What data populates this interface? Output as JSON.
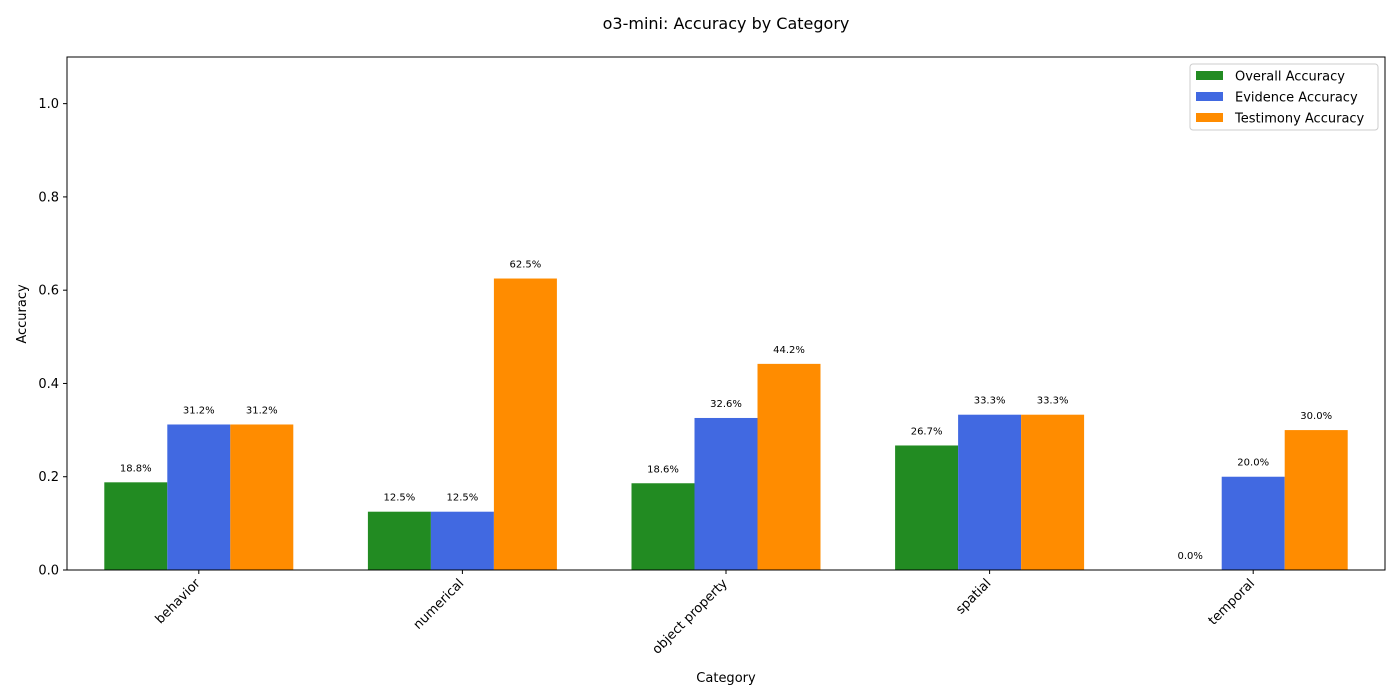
{
  "chart_data": {
    "type": "bar",
    "title": "o3-mini: Accuracy by Category",
    "xlabel": "Category",
    "ylabel": "Accuracy",
    "ylim": [
      0,
      1.1
    ],
    "yticks": [
      "0.0",
      "0.2",
      "0.4",
      "0.6",
      "0.8",
      "1.0"
    ],
    "categories": [
      "behavior",
      "numerical",
      "object property",
      "spatial",
      "temporal"
    ],
    "series": [
      {
        "name": "Overall Accuracy",
        "color": "#228b22",
        "values": [
          0.188,
          0.125,
          0.186,
          0.267,
          0.0
        ],
        "labels": [
          "18.8%",
          "12.5%",
          "18.6%",
          "26.7%",
          "0.0%"
        ]
      },
      {
        "name": "Evidence Accuracy",
        "color": "#4169e1",
        "values": [
          0.312,
          0.125,
          0.326,
          0.333,
          0.2
        ],
        "labels": [
          "31.2%",
          "12.5%",
          "32.6%",
          "33.3%",
          "20.0%"
        ]
      },
      {
        "name": "Testimony Accuracy",
        "color": "#ff8c00",
        "values": [
          0.312,
          0.625,
          0.442,
          0.333,
          0.3
        ],
        "labels": [
          "31.2%",
          "62.5%",
          "44.2%",
          "33.3%",
          "30.0%"
        ]
      }
    ],
    "legend_position": "top-right",
    "grid": false
  }
}
